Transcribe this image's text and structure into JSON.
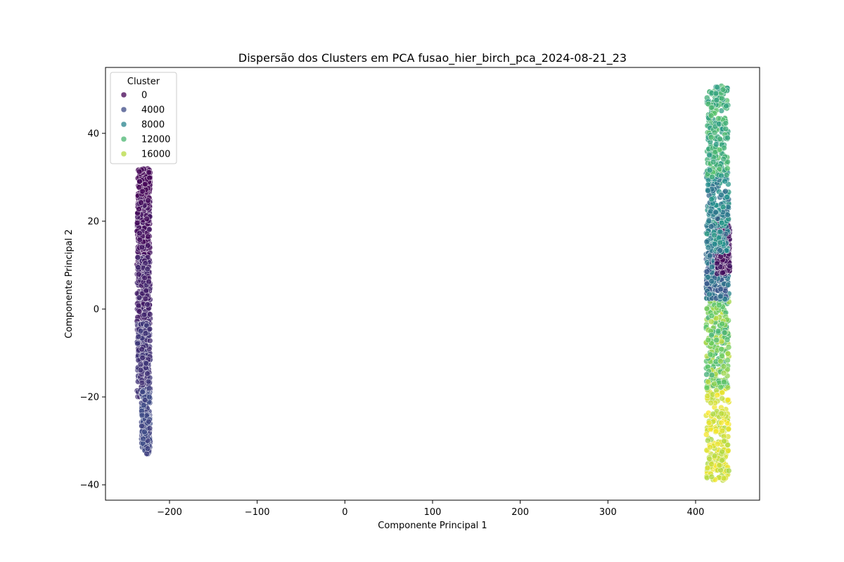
{
  "chart_data": {
    "type": "scatter",
    "title": "Dispersão dos Clusters em PCA fusao_hier_birch_pca_2024-08-21_23",
    "xlabel": "Componente Principal 1",
    "ylabel": "Componente Principal 2",
    "xlim": [
      -273,
      473
    ],
    "ylim": [
      -43.5,
      55
    ],
    "x_ticks": [
      -200,
      -100,
      0,
      100,
      200,
      300,
      400
    ],
    "x_tick_labels": [
      "−200",
      "−100",
      "0",
      "100",
      "200",
      "300",
      "400"
    ],
    "y_ticks": [
      -40,
      -20,
      0,
      20,
      40
    ],
    "y_tick_labels": [
      "−40",
      "−20",
      "0",
      "20",
      "40"
    ],
    "grid": false,
    "colormap": "viridis",
    "hue_range": [
      0,
      18000
    ],
    "legend": {
      "title": "Cluster",
      "placement": "upper left",
      "entries": [
        {
          "label": "0",
          "value": 0
        },
        {
          "label": "4000",
          "value": 4000
        },
        {
          "label": "8000",
          "value": 8000
        },
        {
          "label": "12000",
          "value": 12000
        },
        {
          "label": "16000",
          "value": 16000
        }
      ]
    },
    "groups": [
      {
        "x_range": [
          -236,
          -222
        ],
        "y_range": [
          23,
          32
        ],
        "cluster_range": [
          0,
          300
        ]
      },
      {
        "x_range": [
          -237,
          -222
        ],
        "y_range": [
          10,
          25
        ],
        "cluster_range": [
          300,
          1200
        ]
      },
      {
        "x_range": [
          -237,
          -222
        ],
        "y_range": [
          -5,
          12
        ],
        "cluster_range": [
          1200,
          2200
        ]
      },
      {
        "x_range": [
          -237,
          -222
        ],
        "y_range": [
          -20,
          -3
        ],
        "cluster_range": [
          2200,
          3200
        ]
      },
      {
        "x_range": [
          -232,
          -222
        ],
        "y_range": [
          -33,
          -18
        ],
        "cluster_range": [
          3200,
          4200
        ]
      },
      {
        "x_range": [
          412,
          438
        ],
        "y_range": [
          -39,
          -17
        ],
        "cluster_range": [
          15500,
          18000
        ]
      },
      {
        "x_range": [
          412,
          438
        ],
        "y_range": [
          -18,
          3
        ],
        "cluster_range": [
          11000,
          16500
        ]
      },
      {
        "x_range": [
          412,
          438
        ],
        "y_range": [
          2,
          13
        ],
        "cluster_range": [
          4000,
          8000
        ]
      },
      {
        "x_range": [
          424,
          439
        ],
        "y_range": [
          8,
          21
        ],
        "cluster_range": [
          0,
          1500
        ]
      },
      {
        "x_range": [
          412,
          438
        ],
        "y_range": [
          13,
          32
        ],
        "cluster_range": [
          6000,
          10000
        ]
      },
      {
        "x_range": [
          413,
          437
        ],
        "y_range": [
          30,
          51
        ],
        "cluster_range": [
          9500,
          13000
        ]
      }
    ]
  }
}
